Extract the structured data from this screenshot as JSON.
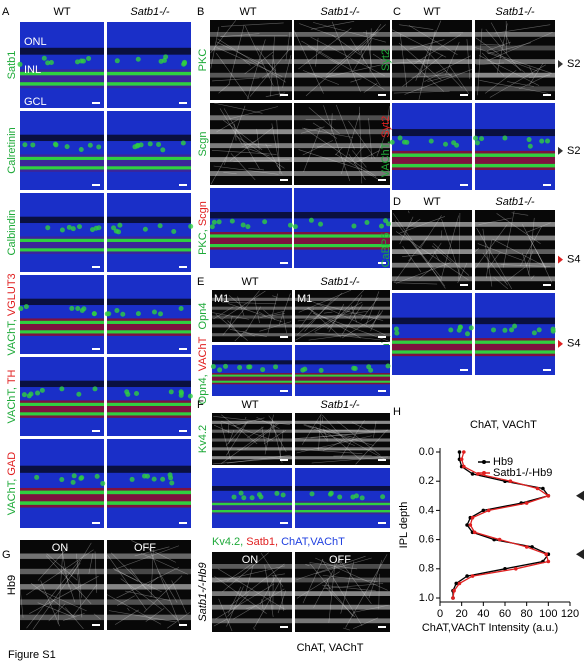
{
  "figure_label": "Figure S1",
  "panels": {
    "A": {
      "letter": "A",
      "columns": [
        "WT",
        "Satb1-/-"
      ],
      "layer_labels": [
        "ONL",
        "INL",
        "GCL"
      ],
      "stains": [
        [
          "Satb1"
        ],
        [
          "Calretinin"
        ],
        [
          "Calbindin"
        ],
        [
          "VAChT, ",
          "VGLUT3"
        ],
        [
          "VAChT, ",
          "TH"
        ],
        [
          "VAChT, ",
          "GAD"
        ]
      ]
    },
    "B": {
      "letter": "B",
      "columns": [
        "WT",
        "Satb1-/-"
      ],
      "stains": [
        [
          "PKC"
        ],
        [
          "Scgn"
        ],
        [
          "PKC, ",
          "Scgn"
        ]
      ]
    },
    "C": {
      "letter": "C",
      "columns": [
        "WT",
        "Satb1-/-"
      ],
      "stains": [
        [
          "Syt2"
        ],
        [
          "VAChT, ",
          "Syt2"
        ]
      ],
      "markers": [
        "S2",
        "S2"
      ]
    },
    "D": {
      "letter": "D",
      "columns": [
        "WT",
        "Satb1-/-"
      ],
      "stains": [
        [
          "CaBP5"
        ],
        [
          "VAChT, ",
          "CaBP5"
        ]
      ],
      "markers": [
        "S4",
        "S4"
      ]
    },
    "E": {
      "letter": "E",
      "columns": [
        "WT",
        "Satb1-/-"
      ],
      "stains": [
        [
          "Opn4"
        ],
        [
          "Opn4, ",
          "VAChT"
        ]
      ],
      "insets": [
        "M1",
        "M1"
      ]
    },
    "F": {
      "letter": "F",
      "columns": [
        "WT",
        "Satb1-/-"
      ],
      "stains": [
        [
          "Kv4.2"
        ]
      ],
      "caption": [
        "Kv4.2, ",
        "Satb1, ",
        "ChAT,VAChT"
      ]
    },
    "G": {
      "letter": "G",
      "rows": [
        "Hb9",
        "Satb1-/-Hb9"
      ],
      "insets": [
        "ON",
        "OFF",
        "ON",
        "OFF"
      ],
      "caption": "ChAT, VAChT"
    },
    "H": {
      "letter": "H"
    }
  },
  "chart_data": {
    "type": "line",
    "title": "ChAT, VAChT",
    "x_label": "ChAT,VAChT Intensity (a.u.)",
    "y_label": "IPL depth",
    "y": [
      0,
      0.05,
      0.1,
      0.15,
      0.2,
      0.25,
      0.3,
      0.35,
      0.4,
      0.45,
      0.5,
      0.55,
      0.6,
      0.65,
      0.7,
      0.75,
      0.8,
      0.85,
      0.9,
      0.95,
      1.0
    ],
    "series": [
      {
        "name": "Hb9",
        "color": "#000000",
        "values": [
          18,
          18,
          20,
          30,
          60,
          95,
          100,
          75,
          40,
          28,
          25,
          30,
          50,
          85,
          100,
          95,
          60,
          25,
          15,
          12,
          12
        ]
      },
      {
        "name": "Satb1-/-Hb9",
        "color": "#e02020",
        "values": [
          22,
          20,
          22,
          35,
          65,
          90,
          100,
          80,
          45,
          30,
          28,
          32,
          55,
          80,
          98,
          100,
          70,
          30,
          18,
          13,
          12
        ]
      }
    ],
    "xlim": [
      0,
      120
    ],
    "xticks": [
      0,
      20,
      40,
      60,
      80,
      100,
      120
    ],
    "ylim": [
      0,
      1
    ],
    "yticks": [
      {
        "value": 0,
        "label": "0.0"
      },
      0.2,
      0.4,
      0.6,
      0.8,
      {
        "value": 1,
        "label": "1.0"
      }
    ],
    "y_inverted": true
  }
}
